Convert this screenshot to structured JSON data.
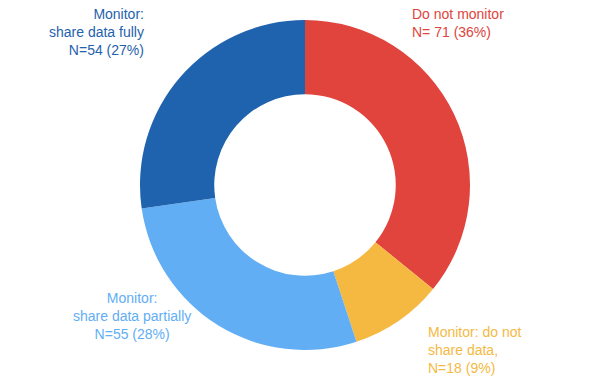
{
  "chart_data": {
    "type": "pie",
    "categories": [
      "Do not monitor",
      "Monitor: do not\nshare data,",
      "Monitor:\nshare data partially",
      "Monitor:\nshare data fully"
    ],
    "values": [
      71,
      18,
      55,
      54
    ],
    "value_labels": [
      "N= 71 (36%)",
      "N=18 (9%)",
      "N=55 (28%)",
      "N=54 (27%)"
    ],
    "colors": [
      "#e0443c",
      "#f5b942",
      "#62aef5",
      "#1f62ad"
    ],
    "data_labels": true
  }
}
